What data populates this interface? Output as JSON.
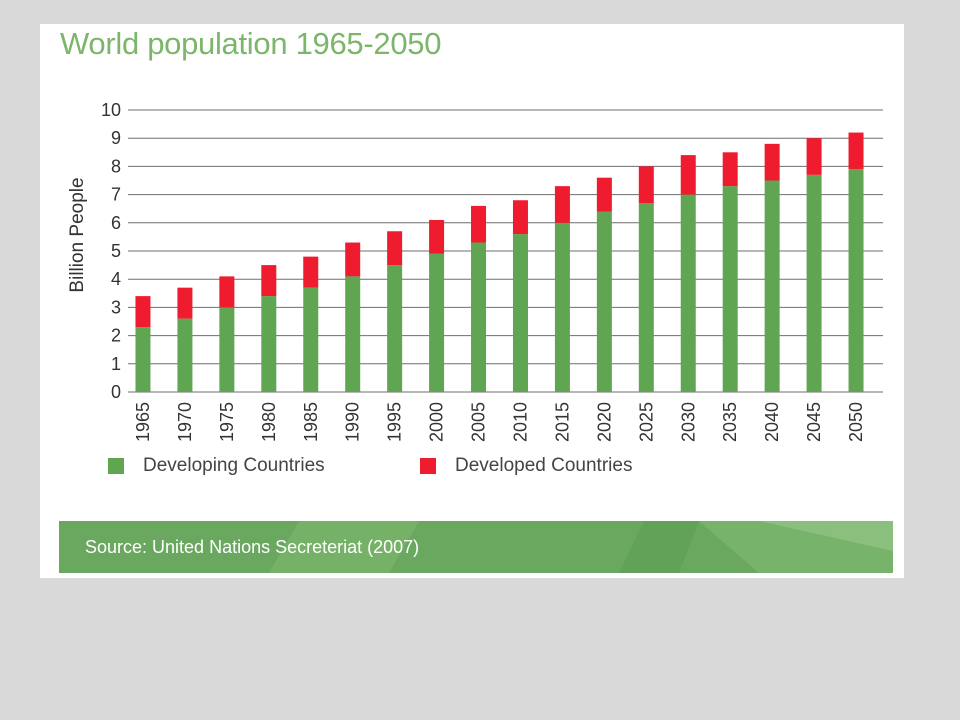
{
  "chart_data": {
    "type": "bar",
    "stacked": true,
    "title": "World population 1965-2050",
    "ylabel": "Billion People",
    "xlabel": "",
    "ylim": [
      0,
      10
    ],
    "yticks": [
      "0",
      "1",
      "2",
      "3",
      "4",
      "5",
      "6",
      "7",
      "8",
      "9",
      "10"
    ],
    "grid": true,
    "legend_position": "bottom",
    "categories": [
      "1965",
      "1970",
      "1975",
      "1980",
      "1985",
      "1990",
      "1995",
      "2000",
      "2005",
      "2010",
      "2015",
      "2020",
      "2025",
      "2030",
      "2035",
      "2040",
      "2045",
      "2050"
    ],
    "series": [
      {
        "name": "Developing Countries",
        "color": "#5fa552",
        "values": [
          2.3,
          2.6,
          3.0,
          3.4,
          3.7,
          4.1,
          4.5,
          4.9,
          5.3,
          5.6,
          6.0,
          6.4,
          6.7,
          7.0,
          7.3,
          7.5,
          7.7,
          7.9
        ]
      },
      {
        "name": "Developed Countries",
        "color": "#ee1c2e",
        "values": [
          1.1,
          1.1,
          1.1,
          1.1,
          1.1,
          1.2,
          1.2,
          1.2,
          1.3,
          1.2,
          1.3,
          1.2,
          1.3,
          1.4,
          1.2,
          1.3,
          1.3,
          1.3
        ]
      }
    ],
    "source": "Source: United Nations Secreteriat (2007)"
  }
}
